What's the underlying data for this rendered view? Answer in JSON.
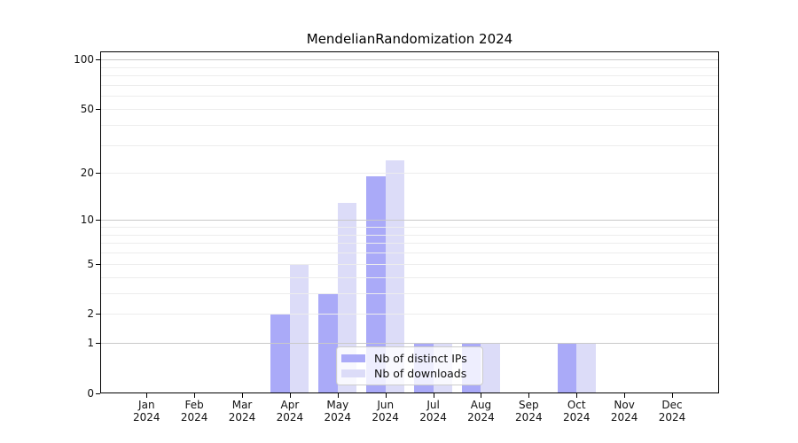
{
  "chart_data": {
    "type": "bar",
    "title": "MendelianRandomization 2024",
    "categories": [
      "Jan",
      "Feb",
      "Mar",
      "Apr",
      "May",
      "Jun",
      "Jul",
      "Aug",
      "Sep",
      "Oct",
      "Nov",
      "Dec"
    ],
    "year": "2024",
    "series": [
      {
        "name": "Nb of distinct IPs",
        "color": "#aaaaf8",
        "values": [
          0,
          0,
          0,
          2,
          3,
          19,
          1,
          1,
          0,
          1,
          0,
          0
        ]
      },
      {
        "name": "Nb of downloads",
        "color": "#dcdcf8",
        "values": [
          0,
          0,
          0,
          5,
          13,
          24,
          1,
          1,
          0,
          1,
          0,
          0
        ]
      }
    ],
    "xlabel": "",
    "ylabel": "",
    "y_scale": "log10(1+x)",
    "y_ticks": [
      0,
      1,
      2,
      5,
      10,
      20,
      50,
      100
    ],
    "y_major_gridlines": [
      1,
      10,
      100
    ],
    "y_minor_gridlines": [
      2,
      3,
      4,
      5,
      6,
      7,
      8,
      9,
      20,
      30,
      40,
      50,
      60,
      70,
      80,
      90
    ],
    "ylim": [
      0,
      115
    ],
    "grid": "horizontal",
    "legend_position": "inside-bottom-center",
    "colors": {
      "major_grid": "#c9c9c9",
      "minor_grid": "#ededed",
      "spine": "#000000",
      "text": "#111111",
      "background": "#ffffff"
    }
  }
}
